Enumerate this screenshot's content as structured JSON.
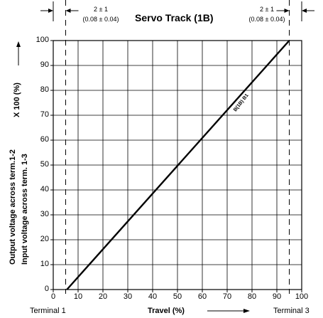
{
  "chart_data": {
    "type": "line",
    "title": "Servo Track (1B)",
    "xlabel": "Travel (%)",
    "ylabel_line1": "Output voltage across term.1-2",
    "ylabel_line2": "Input voltage across term. 1-3",
    "ylabel_factor": "X 100 (%)",
    "xlim": [
      0,
      100
    ],
    "ylim": [
      0,
      100
    ],
    "x_ticks": [
      "0",
      "10",
      "20",
      "30",
      "40",
      "50",
      "60",
      "70",
      "80",
      "90",
      "100"
    ],
    "y_ticks": [
      "0",
      "10",
      "20",
      "30",
      "40",
      "50",
      "60",
      "70",
      "80",
      "90",
      "100"
    ],
    "grid": true,
    "series": [
      {
        "name": "B(1B) B1",
        "x": [
          5.5,
          95
        ],
        "y": [
          0,
          100
        ]
      }
    ],
    "terminals": {
      "left": "Terminal 1",
      "right": "Terminal 3"
    },
    "terminal_x": [
      5,
      95
    ],
    "dimension_left": {
      "top": "2 ± 1",
      "bottom": "(0.08 ± 0.04)"
    },
    "dimension_right": {
      "top": "2 ± 1",
      "bottom": "(0.08 ± 0.04)"
    }
  }
}
